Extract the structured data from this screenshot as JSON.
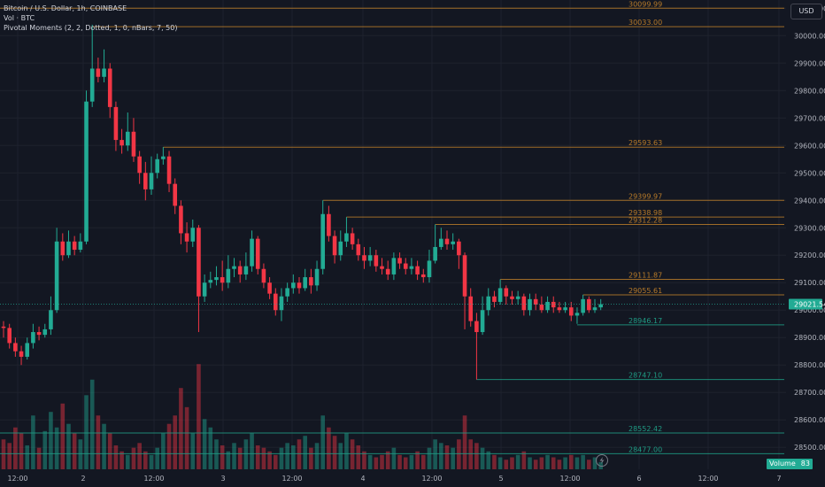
{
  "legend": {
    "symbol": "Bitcoin / U.S. Dollar, 1h, COINBASE",
    "vol": "Vol · BTC",
    "indicator": "Pivotal Moments (2, 2, Dotted, 1, 0, nBars, 7, 50)"
  },
  "currency_button": "USD",
  "volume_tag": {
    "label": "Volume",
    "value": "83"
  },
  "colors": {
    "up": "#22ab94",
    "down": "#f23645",
    "pivot_high": "#b87b29",
    "pivot_low": "#1f9b84",
    "background": "#131722",
    "grid": "#1e222d",
    "axis_text": "#b2b5be"
  },
  "chart_data": {
    "type": "candlestick",
    "ylim": [
      28420,
      30130
    ],
    "y_ticks": [
      28500,
      28600,
      28700,
      28800,
      28900,
      29000,
      29100,
      29200,
      29300,
      29400,
      29500,
      29600,
      29700,
      29800,
      29900,
      30000,
      30100
    ],
    "x_labels": [
      "12:00",
      "2",
      "12:00",
      "3",
      "12:00",
      "4",
      "12:00",
      "5",
      "12:00",
      "6",
      "12:00",
      "7"
    ],
    "current_price": "29021.54",
    "candles": [
      [
        28940,
        28935,
        28960,
        28900
      ],
      [
        28935,
        28880,
        28950,
        28860
      ],
      [
        28880,
        28850,
        28900,
        28830
      ],
      [
        28850,
        28830,
        28870,
        28800
      ],
      [
        28830,
        28880,
        28900,
        28820
      ],
      [
        28880,
        28920,
        28950,
        28860
      ],
      [
        28920,
        28910,
        28940,
        28890
      ],
      [
        28910,
        28930,
        28950,
        28900
      ],
      [
        28930,
        29000,
        29050,
        28910
      ],
      [
        29000,
        29250,
        29300,
        28990
      ],
      [
        29250,
        29200,
        29280,
        29180
      ],
      [
        29200,
        29250,
        29290,
        29190
      ],
      [
        29250,
        29220,
        29270,
        29200
      ],
      [
        29220,
        29250,
        29280,
        29210
      ],
      [
        29250,
        29760,
        29800,
        29240
      ],
      [
        29760,
        29880,
        30040,
        29740
      ],
      [
        29880,
        29850,
        29920,
        29830
      ],
      [
        29850,
        29880,
        29950,
        29830
      ],
      [
        29880,
        29740,
        29900,
        29700
      ],
      [
        29740,
        29620,
        29760,
        29580
      ],
      [
        29620,
        29600,
        29660,
        29570
      ],
      [
        29600,
        29650,
        29720,
        29580
      ],
      [
        29650,
        29560,
        29700,
        29540
      ],
      [
        29560,
        29500,
        29580,
        29460
      ],
      [
        29500,
        29440,
        29540,
        29400
      ],
      [
        29440,
        29500,
        29560,
        29420
      ],
      [
        29500,
        29550,
        29570,
        29480
      ],
      [
        29550,
        29560,
        29594,
        29530
      ],
      [
        29560,
        29460,
        29580,
        29430
      ],
      [
        29460,
        29380,
        29480,
        29350
      ],
      [
        29380,
        29280,
        29400,
        29240
      ],
      [
        29280,
        29250,
        29320,
        29210
      ],
      [
        29250,
        29300,
        29330,
        29230
      ],
      [
        29300,
        29050,
        29310,
        28920
      ],
      [
        29050,
        29100,
        29130,
        29030
      ],
      [
        29100,
        29110,
        29140,
        29080
      ],
      [
        29110,
        29120,
        29160,
        29090
      ],
      [
        29120,
        29100,
        29180,
        29070
      ],
      [
        29100,
        29150,
        29200,
        29080
      ],
      [
        29150,
        29160,
        29190,
        29120
      ],
      [
        29160,
        29130,
        29180,
        29100
      ],
      [
        29130,
        29160,
        29210,
        29110
      ],
      [
        29160,
        29260,
        29290,
        29140
      ],
      [
        29260,
        29150,
        29270,
        29130
      ],
      [
        29150,
        29100,
        29170,
        29080
      ],
      [
        29100,
        29060,
        29120,
        29040
      ],
      [
        29060,
        29000,
        29080,
        28980
      ],
      [
        29000,
        29050,
        29080,
        28960
      ],
      [
        29050,
        29080,
        29100,
        29030
      ],
      [
        29080,
        29100,
        29130,
        29060
      ],
      [
        29100,
        29080,
        29120,
        29060
      ],
      [
        29080,
        29120,
        29150,
        29070
      ],
      [
        29120,
        29090,
        29150,
        29060
      ],
      [
        29090,
        29150,
        29180,
        29070
      ],
      [
        29150,
        29350,
        29400,
        29130
      ],
      [
        29350,
        29270,
        29380,
        29250
      ],
      [
        29270,
        29200,
        29290,
        29170
      ],
      [
        29200,
        29250,
        29290,
        29180
      ],
      [
        29250,
        29280,
        29339,
        29230
      ],
      [
        29280,
        29240,
        29300,
        29220
      ],
      [
        29240,
        29200,
        29260,
        29180
      ],
      [
        29200,
        29180,
        29230,
        29150
      ],
      [
        29180,
        29200,
        29230,
        29160
      ],
      [
        29200,
        29160,
        29220,
        29140
      ],
      [
        29160,
        29150,
        29190,
        29130
      ],
      [
        29150,
        29130,
        29180,
        29110
      ],
      [
        29130,
        29190,
        29210,
        29110
      ],
      [
        29190,
        29170,
        29210,
        29150
      ],
      [
        29170,
        29150,
        29190,
        29130
      ],
      [
        29150,
        29160,
        29190,
        29130
      ],
      [
        29160,
        29130,
        29180,
        29110
      ],
      [
        29130,
        29120,
        29150,
        29100
      ],
      [
        29120,
        29180,
        29220,
        29100
      ],
      [
        29180,
        29230,
        29312,
        29170
      ],
      [
        29230,
        29260,
        29300,
        29220
      ],
      [
        29260,
        29240,
        29290,
        29220
      ],
      [
        29240,
        29250,
        29280,
        29220
      ],
      [
        29250,
        29200,
        29260,
        29150
      ],
      [
        29200,
        29050,
        29210,
        28930
      ],
      [
        29050,
        28960,
        29080,
        28940
      ],
      [
        28960,
        28920,
        28990,
        28747
      ],
      [
        28920,
        29000,
        29050,
        28910
      ],
      [
        29000,
        29050,
        29080,
        28980
      ],
      [
        29050,
        29030,
        29070,
        29010
      ],
      [
        29030,
        29080,
        29112,
        29020
      ],
      [
        29080,
        29050,
        29090,
        29020
      ],
      [
        29050,
        29040,
        29070,
        29020
      ],
      [
        29040,
        29050,
        29070,
        29020
      ],
      [
        29050,
        29000,
        29060,
        28980
      ],
      [
        29000,
        29040,
        29060,
        28980
      ],
      [
        29040,
        29020,
        29060,
        29000
      ],
      [
        29020,
        29000,
        29050,
        28990
      ],
      [
        29000,
        29030,
        29050,
        28990
      ],
      [
        29030,
        29010,
        29050,
        28990
      ],
      [
        29010,
        29000,
        29030,
        28990
      ],
      [
        29000,
        29010,
        29030,
        28990
      ],
      [
        29010,
        28980,
        29030,
        28960
      ],
      [
        28980,
        28990,
        29010,
        28950
      ],
      [
        28990,
        29040,
        29056,
        28980
      ],
      [
        29040,
        29000,
        29050,
        28990
      ],
      [
        29000,
        29010,
        29040,
        28990
      ],
      [
        29010,
        29021.54,
        29040,
        29000
      ]
    ],
    "volume": [
      25,
      22,
      35,
      30,
      20,
      45,
      18,
      32,
      48,
      35,
      55,
      38,
      30,
      25,
      62,
      75,
      45,
      38,
      30,
      20,
      15,
      12,
      18,
      22,
      15,
      12,
      18,
      30,
      38,
      45,
      68,
      52,
      30,
      88,
      42,
      35,
      25,
      20,
      15,
      22,
      18,
      25,
      30,
      20,
      18,
      15,
      12,
      18,
      22,
      20,
      25,
      28,
      18,
      22,
      45,
      35,
      28,
      22,
      30,
      25,
      20,
      15,
      12,
      10,
      12,
      15,
      18,
      12,
      10,
      12,
      15,
      12,
      18,
      25,
      22,
      20,
      18,
      25,
      45,
      25,
      22,
      18,
      15,
      12,
      10,
      8,
      10,
      12,
      15,
      10,
      8,
      10,
      12,
      10,
      8,
      10,
      12,
      10,
      12,
      8,
      10,
      6
    ],
    "pivot_levels": [
      {
        "label": "30099.99",
        "value": 30099.99,
        "kind": "high",
        "from": 0
      },
      {
        "label": "30033.00",
        "value": 30033.0,
        "kind": "high",
        "from": 15
      },
      {
        "label": "29593.63",
        "value": 29593.63,
        "kind": "high",
        "from": 27
      },
      {
        "label": "29399.97",
        "value": 29399.97,
        "kind": "high",
        "from": 54
      },
      {
        "label": "29338.98",
        "value": 29338.98,
        "kind": "high",
        "from": 58
      },
      {
        "label": "29312.28",
        "value": 29312.28,
        "kind": "high",
        "from": 73
      },
      {
        "label": "29111.87",
        "value": 29111.87,
        "kind": "high",
        "from": 84
      },
      {
        "label": "29055.61",
        "value": 29055.61,
        "kind": "high",
        "from": 98
      },
      {
        "label": "28946.17",
        "value": 28946.17,
        "kind": "low",
        "from": 97
      },
      {
        "label": "28747.10",
        "value": 28747.1,
        "kind": "low",
        "from": 80
      },
      {
        "label": "28552.42",
        "value": 28552.42,
        "kind": "low",
        "from": 0
      },
      {
        "label": "28477.00",
        "value": 28477.0,
        "kind": "low",
        "from": 0
      }
    ]
  }
}
